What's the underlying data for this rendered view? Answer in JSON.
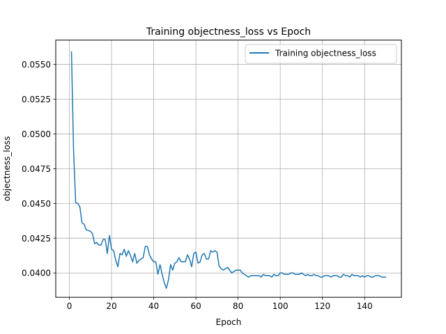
{
  "chart_data": {
    "type": "line",
    "title": "Training objectness_loss vs Epoch",
    "xlabel": "Epoch",
    "ylabel": "objectness_loss",
    "xlim": [
      -6.45,
      157.45
    ],
    "ylim": [
      0.03825,
      0.05675
    ],
    "x_ticks": [
      0,
      20,
      40,
      60,
      80,
      100,
      120,
      140
    ],
    "y_ticks": [
      0.04,
      0.0425,
      0.045,
      0.0475,
      0.05,
      0.0525,
      0.055
    ],
    "x_tick_labels": [
      "0",
      "20",
      "40",
      "60",
      "80",
      "100",
      "120",
      "140"
    ],
    "y_tick_labels": [
      "0.0400",
      "0.0425",
      "0.0450",
      "0.0475",
      "0.0500",
      "0.0525",
      "0.0550"
    ],
    "grid": true,
    "legend_position": "top-right",
    "series": [
      {
        "name": "Training objectness_loss",
        "color": "#1f77b4",
        "x": [
          1,
          2,
          3,
          4,
          5,
          6,
          7,
          8,
          9,
          10,
          11,
          12,
          13,
          14,
          15,
          16,
          17,
          18,
          19,
          20,
          21,
          22,
          23,
          24,
          25,
          26,
          27,
          28,
          29,
          30,
          31,
          32,
          33,
          34,
          35,
          36,
          37,
          38,
          39,
          40,
          41,
          42,
          43,
          44,
          45,
          46,
          47,
          48,
          49,
          50,
          51,
          52,
          53,
          54,
          55,
          56,
          57,
          58,
          59,
          60,
          61,
          62,
          63,
          64,
          65,
          66,
          67,
          68,
          69,
          70,
          71,
          72,
          73,
          74,
          75,
          76,
          77,
          78,
          79,
          80,
          81,
          82,
          83,
          84,
          85,
          86,
          87,
          88,
          89,
          90,
          91,
          92,
          93,
          94,
          95,
          96,
          97,
          98,
          99,
          100,
          101,
          102,
          103,
          104,
          105,
          106,
          107,
          108,
          109,
          110,
          111,
          112,
          113,
          114,
          115,
          116,
          117,
          118,
          119,
          120,
          121,
          122,
          123,
          124,
          125,
          126,
          127,
          128,
          129,
          130,
          131,
          132,
          133,
          134,
          135,
          136,
          137,
          138,
          139,
          140,
          141,
          142,
          143,
          144,
          145,
          146,
          147,
          148,
          149,
          150
        ],
        "values": [
          0.0559,
          0.0488,
          0.04505,
          0.045,
          0.04475,
          0.0436,
          0.0435,
          0.0431,
          0.04305,
          0.043,
          0.0428,
          0.0421,
          0.0422,
          0.042,
          0.042,
          0.0424,
          0.0424,
          0.0414,
          0.0427,
          0.0417,
          0.0416,
          0.0409,
          0.04045,
          0.0414,
          0.0413,
          0.0417,
          0.0412,
          0.0416,
          0.04125,
          0.0408,
          0.0414,
          0.0407,
          0.0409,
          0.041,
          0.0411,
          0.0419,
          0.0419,
          0.0413,
          0.041,
          0.0408,
          0.0408,
          0.0399,
          0.0406,
          0.0399,
          0.0393,
          0.0389,
          0.0395,
          0.0406,
          0.0402,
          0.0407,
          0.0408,
          0.0411,
          0.0408,
          0.0408,
          0.0408,
          0.0413,
          0.041,
          0.04045,
          0.0414,
          0.0415,
          0.0407,
          0.0408,
          0.0413,
          0.0414,
          0.041,
          0.041,
          0.0416,
          0.0415,
          0.0416,
          0.0415,
          0.0405,
          0.0403,
          0.0402,
          0.0403,
          0.0404,
          0.0402,
          0.04,
          0.0401,
          0.0402,
          0.0402,
          0.0402,
          0.04,
          0.0399,
          0.0398,
          0.0397,
          0.0398,
          0.0398,
          0.0398,
          0.0398,
          0.0398,
          0.0397,
          0.0399,
          0.0398,
          0.0398,
          0.0398,
          0.0397,
          0.0399,
          0.0398,
          0.0398,
          0.04,
          0.04,
          0.0399,
          0.0399,
          0.0399,
          0.04,
          0.04,
          0.0399,
          0.0399,
          0.0399,
          0.04,
          0.0399,
          0.0398,
          0.0399,
          0.0398,
          0.0398,
          0.0399,
          0.0398,
          0.0398,
          0.0397,
          0.0397,
          0.0398,
          0.0398,
          0.0398,
          0.0397,
          0.0398,
          0.0398,
          0.0398,
          0.0397,
          0.0397,
          0.0399,
          0.0398,
          0.0398,
          0.0397,
          0.0399,
          0.0398,
          0.0398,
          0.0398,
          0.0397,
          0.0398,
          0.0397,
          0.0398,
          0.0398,
          0.0397,
          0.0397,
          0.0398,
          0.0398,
          0.0398,
          0.0397,
          0.0397,
          0.0397
        ]
      }
    ]
  }
}
